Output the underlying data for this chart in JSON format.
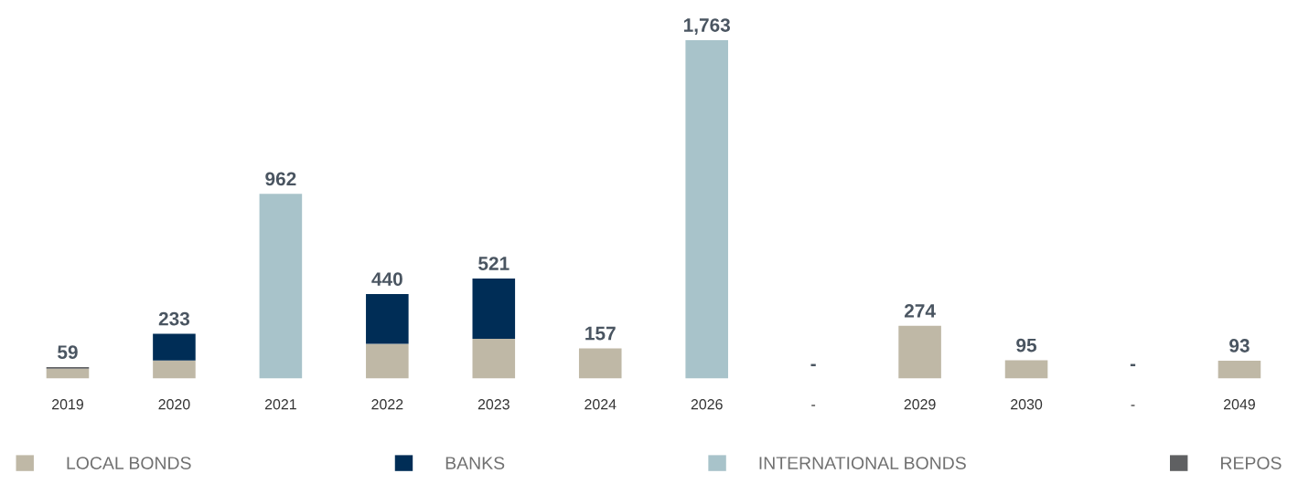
{
  "chart_data": {
    "type": "bar",
    "stacked": true,
    "categories": [
      "2019",
      "2020",
      "2021",
      "2022",
      "2023",
      "2024",
      "2026",
      "-",
      "2029",
      "2030",
      "-",
      "2049"
    ],
    "series": [
      {
        "name": "LOCAL BONDS",
        "color": "#bfb8a6",
        "values": [
          51,
          94,
          null,
          181,
          207,
          157,
          null,
          null,
          274,
          95,
          null,
          93
        ],
        "value_labels": [
          null,
          null,
          null,
          null,
          null,
          "157",
          null,
          null,
          "274",
          "95",
          null,
          "93"
        ]
      },
      {
        "name": "BANKS",
        "color": "#002d56",
        "values": [
          null,
          139,
          null,
          259,
          314,
          null,
          null,
          null,
          null,
          null,
          null,
          null
        ]
      },
      {
        "name": "INTERNATIONAL BONDS",
        "color": "#a8c3ca",
        "values": [
          null,
          null,
          962,
          null,
          null,
          null,
          1763,
          null,
          null,
          null,
          null,
          null
        ],
        "value_labels": [
          null,
          null,
          "962",
          null,
          null,
          null,
          "1,763",
          null,
          null,
          null,
          null,
          null
        ]
      },
      {
        "name": "REPOS",
        "color": "#5f6062",
        "values": [
          8,
          null,
          null,
          null,
          null,
          null,
          null,
          null,
          null,
          null,
          null,
          null
        ]
      }
    ],
    "totals": [
      "59",
      "233",
      null,
      "440",
      "521",
      null,
      null,
      "-",
      null,
      null,
      "-",
      null
    ],
    "tick_labels": "x",
    "legend": "bottom"
  }
}
